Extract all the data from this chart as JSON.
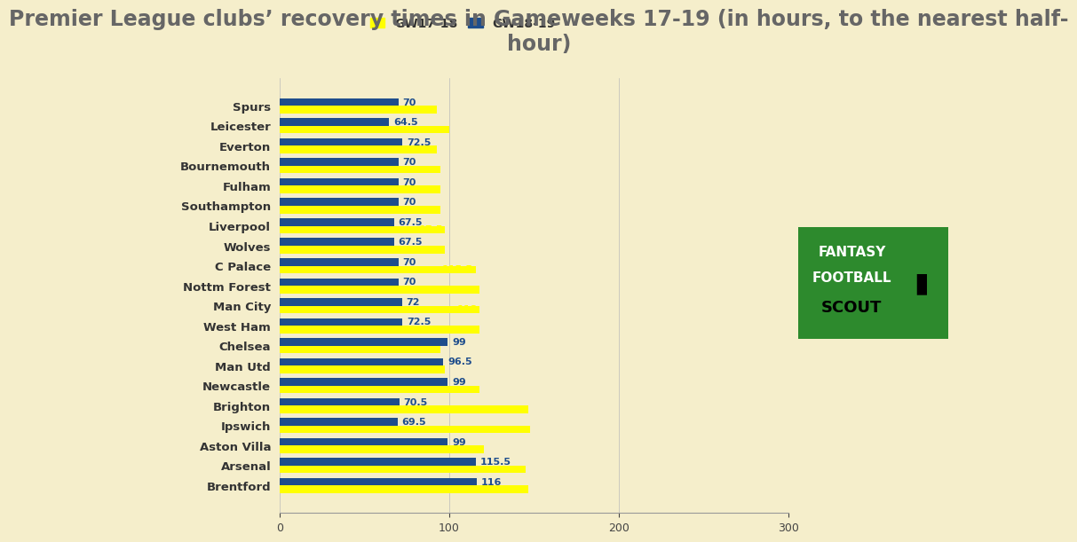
{
  "title_line1": "Premier League clubs’ recovery times in Gameweeks 17-19 (in hours, to the nearest half-",
  "title_line2": "hour)",
  "background_color": "#f5eecb",
  "bar_color_gw1718": "#ffff00",
  "bar_color_gw1819": "#1e4d8c",
  "text_color_title": "#666666",
  "text_color_labels": "#333333",
  "text_color_blue": "#1e4d8c",
  "legend_label1": "GW17-18",
  "legend_label2": "GW18-19",
  "xlim": [
    0,
    300
  ],
  "xticks": [
    0,
    100,
    200,
    300
  ],
  "clubs": [
    "Spurs",
    "Leicester",
    "Everton",
    "Bournemouth",
    "Fulham",
    "Southampton",
    "Liverpool",
    "Wolves",
    "C Palace",
    "Nottm Forest",
    "Man City",
    "West Ham",
    "Chelsea",
    "Man Utd",
    "Newcastle",
    "Brighton",
    "Ipswich",
    "Aston Villa",
    "Arsenal",
    "Brentford"
  ],
  "gw1718": [
    92.5,
    100,
    92.5,
    95,
    95,
    95,
    97.5,
    97.5,
    115.5,
    118,
    118,
    118,
    95,
    97.5,
    118,
    146.5,
    147.5,
    120.5,
    145,
    146.5
  ],
  "gw1819": [
    70,
    64.5,
    72.5,
    70,
    70,
    70,
    67.5,
    67.5,
    70,
    70,
    72,
    72.5,
    99,
    96.5,
    99,
    70.5,
    69.5,
    99,
    115.5,
    116
  ],
  "title_fontsize": 17,
  "label_fontsize": 9.5,
  "tick_fontsize": 9,
  "legend_fontsize": 10,
  "bar_height": 0.38,
  "logo_bg": "#2d8a2d",
  "logo_text1": "FANTASY",
  "logo_text2": "FOOTBALL",
  "logo_text3": "SCOUT"
}
